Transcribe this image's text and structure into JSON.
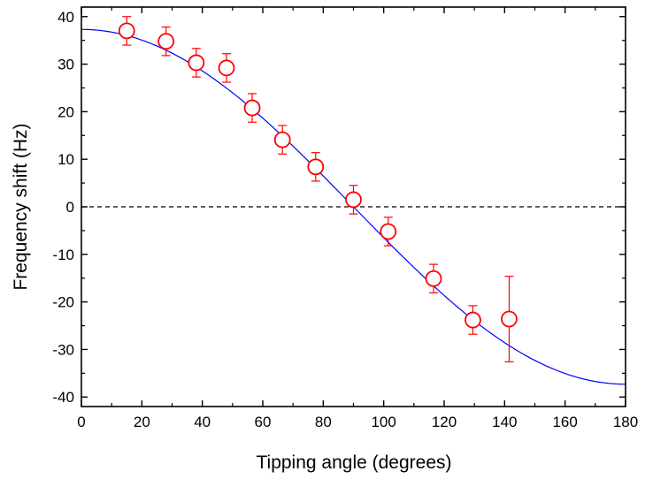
{
  "chart_data": {
    "type": "scatter",
    "title": "",
    "xlabel": "Tipping angle (degrees)",
    "ylabel": "Frequency shift (Hz)",
    "xlim": [
      0,
      180
    ],
    "ylim": [
      -42,
      42
    ],
    "x_ticks": [
      0,
      20,
      40,
      60,
      80,
      100,
      120,
      140,
      160,
      180
    ],
    "x_tick_labels": [
      "0",
      "20",
      "40",
      "60",
      "80",
      "100",
      "120",
      "140",
      "160",
      "180"
    ],
    "y_ticks": [
      -40,
      -30,
      -20,
      -10,
      0,
      10,
      20,
      30,
      40
    ],
    "y_tick_labels": [
      "-40",
      "-30",
      "-20",
      "-10",
      "0",
      "10",
      "20",
      "30",
      "40"
    ],
    "grid": false,
    "series": [
      {
        "kind": "scatter_with_error_bars",
        "marker": "open-circle",
        "color": "#ff0000",
        "x": [
          15,
          28,
          38,
          48,
          56.5,
          66.5,
          77.5,
          90,
          101.5,
          116.5,
          129.5,
          141.5
        ],
        "y": [
          37,
          34.8,
          30.3,
          29.2,
          20.8,
          14.1,
          8.4,
          1.5,
          -5.2,
          -15.1,
          -23.8,
          -23.6
        ],
        "error": [
          3,
          3,
          3,
          3,
          3,
          3,
          3,
          3,
          3,
          3,
          3,
          9
        ]
      },
      {
        "kind": "fit_line",
        "color": "#0000ff",
        "function": "37.3*cos(x)",
        "amplitude": 37.3
      }
    ],
    "reference_line": {
      "y": 0,
      "style": "dashed",
      "color": "#000000"
    }
  }
}
